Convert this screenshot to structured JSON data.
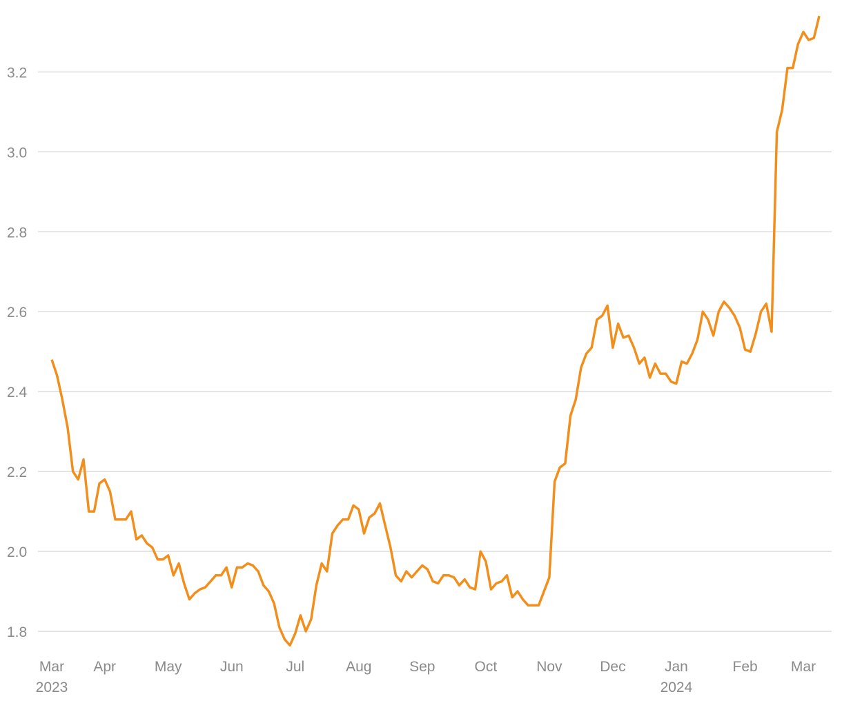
{
  "chart_data": {
    "type": "line",
    "categories": [
      "Mar\n2023",
      null,
      null,
      null,
      null,
      null,
      null,
      null,
      null,
      null,
      "Apr",
      null,
      null,
      null,
      null,
      null,
      null,
      null,
      null,
      null,
      null,
      null,
      "May",
      null,
      null,
      null,
      null,
      null,
      null,
      null,
      null,
      null,
      null,
      null,
      "Jun",
      null,
      null,
      null,
      null,
      null,
      null,
      null,
      null,
      null,
      null,
      null,
      "Jul",
      null,
      null,
      null,
      null,
      null,
      null,
      null,
      null,
      null,
      null,
      null,
      "Aug",
      null,
      null,
      null,
      null,
      null,
      null,
      null,
      null,
      null,
      null,
      null,
      "Sep",
      null,
      null,
      null,
      null,
      null,
      null,
      null,
      null,
      null,
      null,
      null,
      "Oct",
      null,
      null,
      null,
      null,
      null,
      null,
      null,
      null,
      null,
      null,
      null,
      "Nov",
      null,
      null,
      null,
      null,
      null,
      null,
      null,
      null,
      null,
      null,
      null,
      "Dec",
      null,
      null,
      null,
      null,
      null,
      null,
      null,
      null,
      null,
      null,
      null,
      "Jan\n2024",
      null,
      null,
      null,
      null,
      null,
      null,
      null,
      null,
      null,
      null,
      null,
      null,
      "Feb",
      null,
      null,
      null,
      null,
      null,
      null,
      null,
      null,
      null,
      null,
      "Mar",
      null,
      null,
      null
    ],
    "series": [
      {
        "color": "#f28e1c",
        "values": [
          2.48,
          2.44,
          2.38,
          2.31,
          2.2,
          2.18,
          2.23,
          2.1,
          2.1,
          2.17,
          2.18,
          2.15,
          2.08,
          2.08,
          2.08,
          2.1,
          2.03,
          2.04,
          2.02,
          2.01,
          1.98,
          1.98,
          1.99,
          1.94,
          1.97,
          1.92,
          1.88,
          1.895,
          1.905,
          1.91,
          1.925,
          1.94,
          1.94,
          1.96,
          1.91,
          1.96,
          1.96,
          1.97,
          1.965,
          1.95,
          1.915,
          1.9,
          1.87,
          1.81,
          1.78,
          1.765,
          1.795,
          1.84,
          1.8,
          1.83,
          1.915,
          1.97,
          1.95,
          2.045,
          2.065,
          2.08,
          2.08,
          2.115,
          2.105,
          2.045,
          2.085,
          2.095,
          2.12,
          2.065,
          2.01,
          1.94,
          1.925,
          1.95,
          1.935,
          1.95,
          1.965,
          1.955,
          1.925,
          1.92,
          1.94,
          1.94,
          1.935,
          1.915,
          1.93,
          1.91,
          1.905,
          2.0,
          1.975,
          1.905,
          1.92,
          1.925,
          1.94,
          1.885,
          1.9,
          1.88,
          1.865,
          1.865,
          1.865,
          1.9,
          1.935,
          2.175,
          2.21,
          2.22,
          2.34,
          2.38,
          2.46,
          2.495,
          2.51,
          2.58,
          2.59,
          2.615,
          2.51,
          2.57,
          2.535,
          2.54,
          2.51,
          2.47,
          2.485,
          2.435,
          2.47,
          2.445,
          2.445,
          2.425,
          2.42,
          2.475,
          2.47,
          2.495,
          2.53,
          2.6,
          2.58,
          2.54,
          2.6,
          2.625,
          2.61,
          2.59,
          2.56,
          2.505,
          2.5,
          2.545,
          2.6,
          2.62,
          2.55,
          3.05,
          3.105,
          3.21,
          3.21,
          3.27,
          3.3,
          3.28,
          3.285,
          3.34
        ]
      }
    ],
    "ylim": [
      1.75,
      3.38
    ],
    "yticks": [
      1.8,
      {
        "value": 2,
        "label": "2.0"
      },
      2.2,
      2.4,
      2.6,
      2.8,
      {
        "value": 3,
        "label": "3.0"
      },
      3.2
    ],
    "grid": true
  }
}
